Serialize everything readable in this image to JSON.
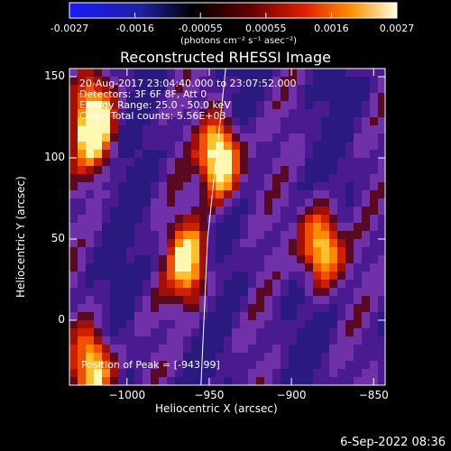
{
  "colorbar": {
    "ticks": [
      "-0.0027",
      "-0.0016",
      "-0.00055",
      "0.00055",
      "0.0016",
      "0.0027"
    ],
    "unit_label": "(photons cm⁻² s⁻¹ asec⁻²)",
    "range": [
      -0.0027,
      0.0027
    ]
  },
  "chart_data": {
    "type": "heatmap",
    "title": "Reconstructed RHESSI Image",
    "xlabel": "Heliocentric X (arcsec)",
    "ylabel": "Heliocentric Y (arcsec)",
    "xlim": [
      -1035,
      -843
    ],
    "ylim": [
      -40,
      155
    ],
    "x_ticks": [
      -1000,
      -950,
      -900,
      -850
    ],
    "y_ticks": [
      0,
      50,
      100,
      150
    ],
    "x_tick_labels": [
      "−1000",
      "−950",
      "−900",
      "−850"
    ],
    "y_tick_labels": [
      "0",
      "50",
      "100",
      "150"
    ],
    "colormap": "rhessi-blue-black-red-yellow",
    "peak_position": [
      -943,
      99
    ],
    "bright_sources": [
      {
        "x": -1020,
        "y": 120,
        "intensity": 0.9
      },
      {
        "x": -943,
        "y": 99,
        "intensity": 1.0
      },
      {
        "x": -962,
        "y": 35,
        "intensity": 0.75
      },
      {
        "x": -882,
        "y": 45,
        "intensity": 0.85
      },
      {
        "x": -1020,
        "y": -30,
        "intensity": 0.85
      }
    ],
    "limb_line": [
      [
        -940,
        155
      ],
      [
        -951,
        50
      ],
      [
        -955,
        -40
      ]
    ]
  },
  "info_text": {
    "line1": "20-Aug-2017 23:04:40.000 to 23:07:52.000",
    "line2": "Detectors: 3F 6F 8F, Att 0",
    "line3": "Energy Range: 25.0 - 50.0 keV",
    "line4": "Clean    Total counts: 5.56E+03",
    "peak": "Position of Peak = [-943,99]"
  },
  "footer_date": "6-Sep-2022 08:36",
  "colors": {
    "frame": "#ffffff",
    "background": "#000000",
    "low": "#2a1060",
    "mid": "#7a2ab0"
  }
}
